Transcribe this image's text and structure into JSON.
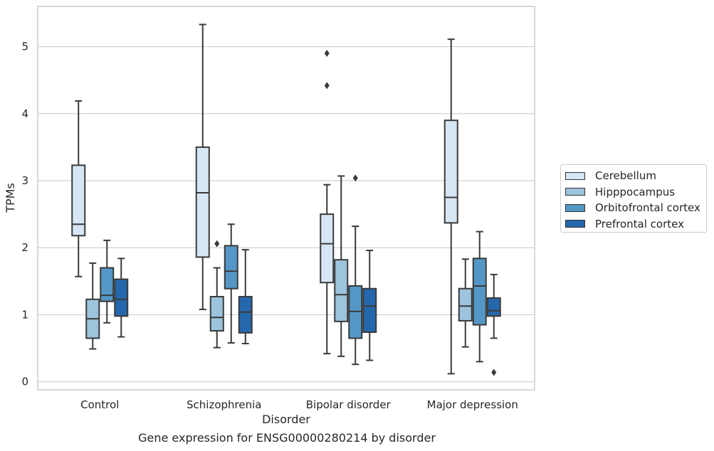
{
  "caption": "Gene expression for ENSG00000280214 by disorder",
  "legend": {
    "items": [
      {
        "label": "Cerebellum",
        "color": "#d6e6f4"
      },
      {
        "label": "Hipppocampus",
        "color": "#9dc4dd"
      },
      {
        "label": "Orbitofrontal cortex",
        "color": "#5497c6"
      },
      {
        "label": "Prefrontal cortex",
        "color": "#2567ac"
      }
    ]
  },
  "chart_data": {
    "type": "box",
    "title": "",
    "xlabel": "Disorder",
    "ylabel": "TPMs",
    "categories": [
      "Control",
      "Schizophrenia",
      "Bipolar disorder",
      "Major depression"
    ],
    "ylim": [
      -0.12,
      5.6
    ],
    "yticks": [
      0,
      1,
      2,
      3,
      4,
      5
    ],
    "grid": true,
    "legend_position": "right",
    "series": [
      {
        "name": "Cerebellum",
        "color": "#d6e6f4",
        "boxes": [
          {
            "whislo": 1.57,
            "q1": 2.18,
            "med": 2.35,
            "q3": 3.23,
            "whishi": 4.19,
            "fliers": []
          },
          {
            "whislo": 1.08,
            "q1": 1.86,
            "med": 2.82,
            "q3": 3.5,
            "whishi": 5.33,
            "fliers": []
          },
          {
            "whislo": 0.42,
            "q1": 1.48,
            "med": 2.06,
            "q3": 2.5,
            "whishi": 2.94,
            "fliers": [
              4.42,
              4.9
            ]
          },
          {
            "whislo": 0.12,
            "q1": 2.37,
            "med": 2.75,
            "q3": 3.9,
            "whishi": 5.11,
            "fliers": []
          }
        ]
      },
      {
        "name": "Hipppocampus",
        "color": "#9dc4dd",
        "boxes": [
          {
            "whislo": 0.49,
            "q1": 0.65,
            "med": 0.94,
            "q3": 1.23,
            "whishi": 1.77,
            "fliers": []
          },
          {
            "whislo": 0.51,
            "q1": 0.76,
            "med": 0.96,
            "q3": 1.27,
            "whishi": 1.7,
            "fliers": [
              2.06
            ]
          },
          {
            "whislo": 0.38,
            "q1": 0.9,
            "med": 1.3,
            "q3": 1.82,
            "whishi": 3.07,
            "fliers": []
          },
          {
            "whislo": 0.52,
            "q1": 0.91,
            "med": 1.13,
            "q3": 1.39,
            "whishi": 1.83,
            "fliers": []
          }
        ]
      },
      {
        "name": "Orbitofrontal cortex",
        "color": "#5497c6",
        "boxes": [
          {
            "whislo": 0.88,
            "q1": 1.2,
            "med": 1.29,
            "q3": 1.7,
            "whishi": 2.11,
            "fliers": []
          },
          {
            "whislo": 0.58,
            "q1": 1.39,
            "med": 1.65,
            "q3": 2.03,
            "whishi": 2.35,
            "fliers": []
          },
          {
            "whislo": 0.26,
            "q1": 0.65,
            "med": 1.05,
            "q3": 1.43,
            "whishi": 2.32,
            "fliers": [
              3.04
            ]
          },
          {
            "whislo": 0.3,
            "q1": 0.85,
            "med": 1.43,
            "q3": 1.84,
            "whishi": 2.24,
            "fliers": []
          }
        ]
      },
      {
        "name": "Prefrontal cortex",
        "color": "#2567ac",
        "boxes": [
          {
            "whislo": 0.67,
            "q1": 0.98,
            "med": 1.23,
            "q3": 1.53,
            "whishi": 1.84,
            "fliers": []
          },
          {
            "whislo": 0.57,
            "q1": 0.73,
            "med": 1.04,
            "q3": 1.27,
            "whishi": 1.97,
            "fliers": []
          },
          {
            "whislo": 0.32,
            "q1": 0.74,
            "med": 1.13,
            "q3": 1.39,
            "whishi": 1.96,
            "fliers": []
          },
          {
            "whislo": 0.65,
            "q1": 0.98,
            "med": 1.06,
            "q3": 1.25,
            "whishi": 1.6,
            "fliers": [
              0.14
            ]
          }
        ]
      }
    ]
  }
}
